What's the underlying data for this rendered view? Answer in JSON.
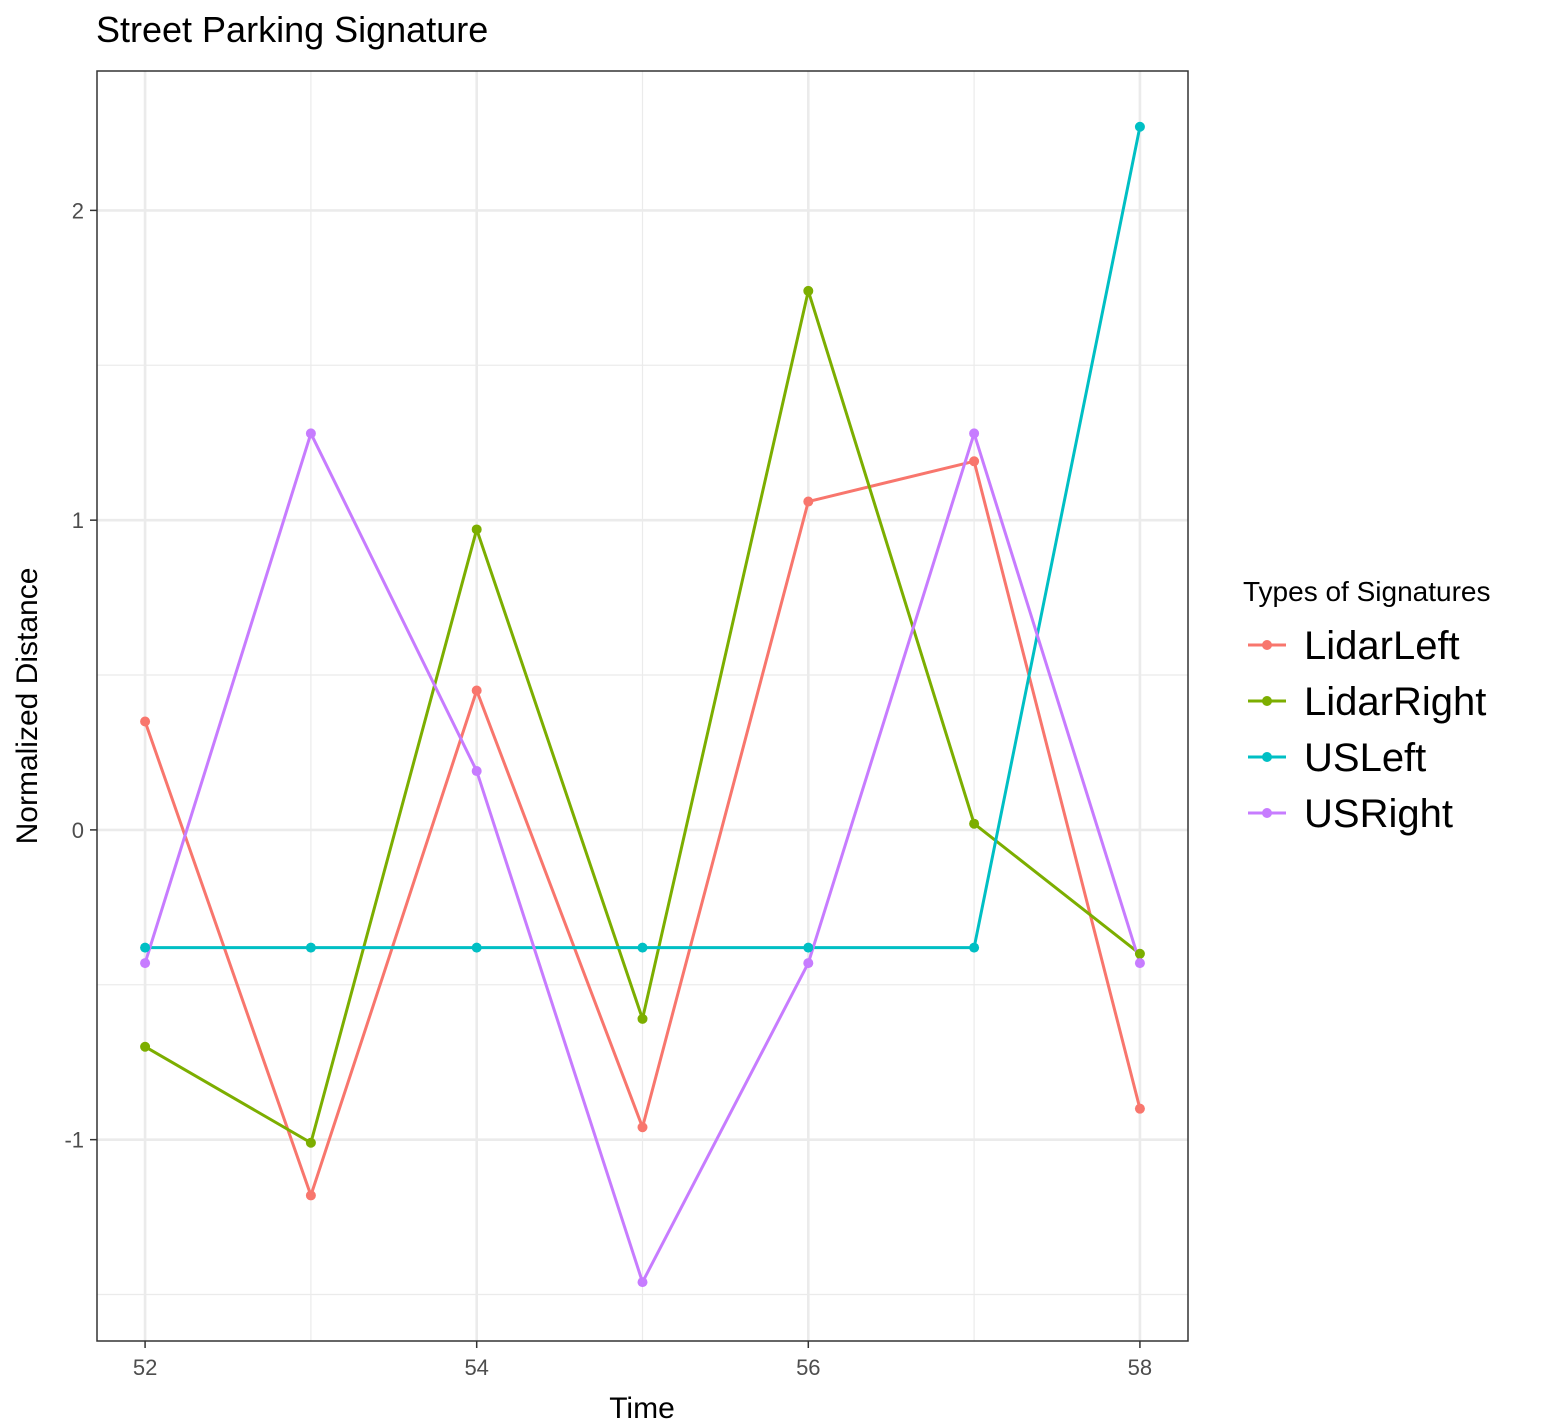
{
  "chart_data": {
    "type": "line",
    "title": "Street Parking Signature",
    "xlabel": "Time",
    "ylabel": "Normalized Distance",
    "x": [
      52,
      53,
      54,
      55,
      56,
      57,
      58
    ],
    "xlim": [
      51.71,
      58.29
    ],
    "ylim": [
      -1.65,
      2.45
    ],
    "x_major_ticks": [
      52,
      54,
      56,
      58
    ],
    "x_minor_ticks": [
      53,
      55,
      57
    ],
    "y_major_ticks": [
      -1,
      0,
      1,
      2
    ],
    "y_minor_ticks": [
      -1.5,
      -0.5,
      0.5,
      1.5
    ],
    "x_tick_labels": [
      "52",
      "54",
      "56",
      "58"
    ],
    "y_tick_labels": [
      "-1",
      "0",
      "1",
      "2"
    ],
    "grid": true,
    "legend": {
      "title": "Types of Signatures",
      "position": "right"
    },
    "series": [
      {
        "name": "LidarLeft",
        "color": "#F8766D",
        "values": [
          0.35,
          -1.18,
          0.45,
          -0.96,
          1.06,
          1.19,
          -0.9
        ]
      },
      {
        "name": "LidarRight",
        "color": "#7CAE00",
        "values": [
          -0.7,
          -1.01,
          0.97,
          -0.61,
          1.74,
          0.02,
          -0.4
        ]
      },
      {
        "name": "USLeft",
        "color": "#00BFC4",
        "values": [
          -0.38,
          -0.38,
          -0.38,
          -0.38,
          -0.38,
          -0.38,
          2.27
        ]
      },
      {
        "name": "USRight",
        "color": "#C77CFF",
        "values": [
          -0.43,
          1.28,
          0.19,
          -1.46,
          -0.43,
          1.28,
          -0.43
        ]
      }
    ]
  }
}
